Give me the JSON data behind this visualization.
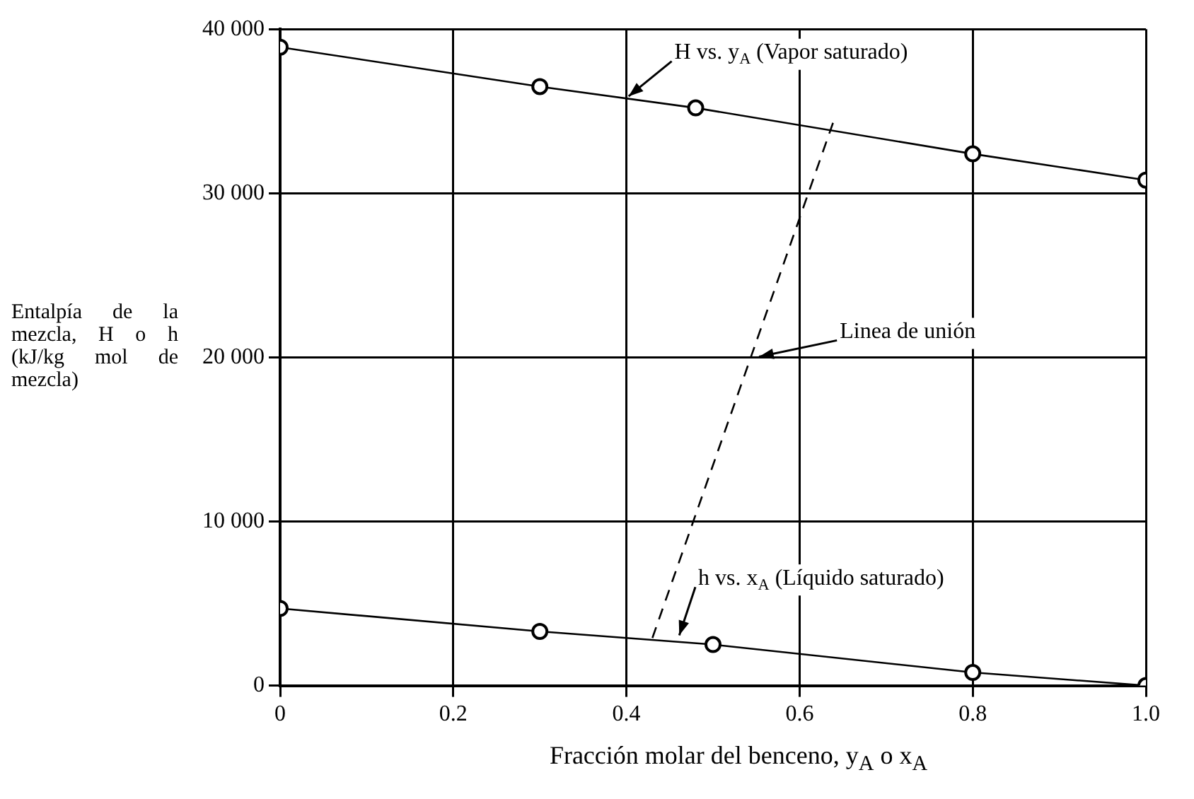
{
  "chart_data": {
    "type": "line",
    "xlabel": "Fracción molar del benceno, y$_{A}$ o x$_{A}$",
    "ylabel": "Entalpía de la mezcla, H o h (kJ/kg mol de mezcla)",
    "xlim": [
      0,
      1
    ],
    "xticks": [
      0,
      0.2,
      0.4,
      0.6,
      0.8,
      {
        "value": 1,
        "label": "1.0"
      }
    ],
    "ylim": [
      0,
      40000
    ],
    "yticks": [
      {
        "value": 0,
        "label": "0"
      },
      {
        "value": 10000,
        "label": "10 000"
      },
      {
        "value": 20000,
        "label": "20 000"
      },
      {
        "value": 30000,
        "label": "30 000"
      },
      {
        "value": 40000,
        "label": "40 000"
      }
    ],
    "grid": true,
    "legend": false,
    "series": [
      {
        "color": "#000000",
        "marker": "circle",
        "line_style": "solid",
        "x": [
          0,
          0.3,
          0.48,
          0.8,
          1.0
        ],
        "values": [
          38900,
          36500,
          35200,
          32400,
          30800
        ]
      },
      {
        "color": "#000000",
        "marker": "circle",
        "line_style": "solid",
        "x": [
          0,
          0.3,
          0.5,
          0.8,
          1.0
        ],
        "values": [
          4700,
          3300,
          2500,
          800,
          0
        ]
      },
      {
        "color": "#000000",
        "marker": "none",
        "line_style": "dashed",
        "x": [
          0.43,
          0.64
        ],
        "values": [
          2900,
          34500
        ]
      }
    ],
    "annotations": [
      {
        "text": "H vs. y$_{A}$ (Vapor saturado)",
        "x": 0.4,
        "y": 35800
      },
      {
        "text": "Linea de unión",
        "x": 0.55,
        "y": 20000
      },
      {
        "text": "h vs. x$_{A}$ (Líquido saturado)",
        "x": 0.46,
        "y": 2900
      }
    ]
  }
}
